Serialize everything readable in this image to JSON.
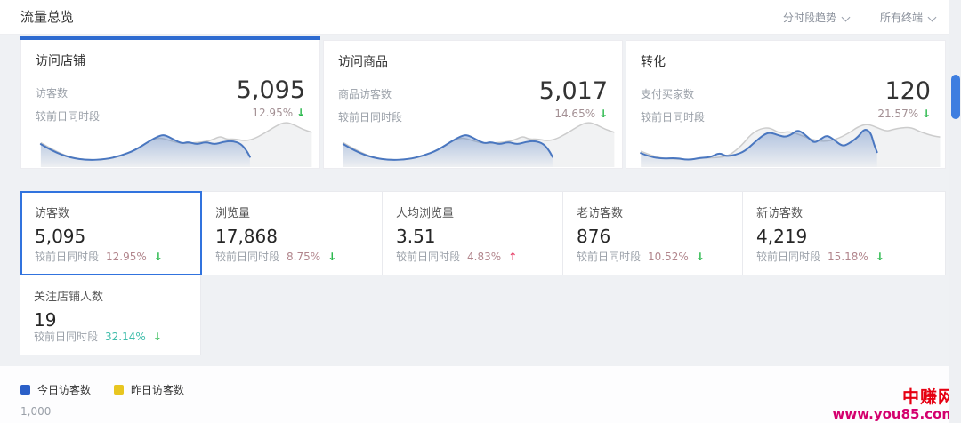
{
  "header": {
    "title": "流量总览",
    "trend_select": "分时段趋势",
    "terminal_select": "所有终端"
  },
  "cards": [
    {
      "title": "访问店铺",
      "metric_label": "访客数",
      "value": "5,095",
      "compare_label": "较前日同时段",
      "change": "12.95%",
      "direction": "down"
    },
    {
      "title": "访问商品",
      "metric_label": "商品访客数",
      "value": "5,017",
      "compare_label": "较前日同时段",
      "change": "14.65%",
      "direction": "down"
    },
    {
      "title": "转化",
      "metric_label": "支付买家数",
      "value": "120",
      "compare_label": "较前日同时段",
      "change": "21.57%",
      "direction": "down"
    }
  ],
  "tiles": [
    {
      "label": "访客数",
      "value": "5,095",
      "compare_label": "较前日同时段",
      "change": "12.95%",
      "direction": "down",
      "selected": true,
      "change_color": "#b2868d"
    },
    {
      "label": "浏览量",
      "value": "17,868",
      "compare_label": "较前日同时段",
      "change": "8.75%",
      "direction": "down",
      "selected": false,
      "change_color": "#b2868d"
    },
    {
      "label": "人均浏览量",
      "value": "3.51",
      "compare_label": "较前日同时段",
      "change": "4.83%",
      "direction": "up",
      "selected": false,
      "change_color": "#b2868d"
    },
    {
      "label": "老访客数",
      "value": "876",
      "compare_label": "较前日同时段",
      "change": "10.52%",
      "direction": "down",
      "selected": false,
      "change_color": "#b2868d"
    },
    {
      "label": "新访客数",
      "value": "4,219",
      "compare_label": "较前日同时段",
      "change": "15.18%",
      "direction": "down",
      "selected": false,
      "change_color": "#b2868d"
    },
    {
      "label": "关注店铺人数",
      "value": "19",
      "compare_label": "较前日同时段",
      "change": "32.14%",
      "direction": "down",
      "selected": false,
      "change_color": "#3fbdaa"
    }
  ],
  "legend": [
    {
      "label": "今日访客数",
      "color": "#2b5fc7"
    },
    {
      "label": "昨日访客数",
      "color": "#e8c620"
    }
  ],
  "axis_tick": "1,000",
  "watermark": {
    "site": "中赚网",
    "url": "www.you85.com"
  },
  "colors": {
    "accent": "#2e6bd0",
    "spark_today": "#4a77c0",
    "spark_yesterday": "#cccccc",
    "arrow_down_green": "#26b749",
    "arrow_up_red": "#e8486f"
  },
  "chart_data": {
    "type": "area",
    "note": "mini trend sparklines, today(blue) vs yesterday(gray), values normalized 0-100",
    "sparklines": [
      {
        "today": [
          [
            6,
            45
          ],
          [
            10,
            30
          ],
          [
            16,
            16
          ],
          [
            22,
            11
          ],
          [
            28,
            13
          ],
          [
            33,
            20
          ],
          [
            38,
            32
          ],
          [
            43,
            52
          ],
          [
            46,
            62
          ],
          [
            48,
            65
          ],
          [
            51,
            55
          ],
          [
            54,
            46
          ],
          [
            56,
            50
          ],
          [
            59,
            44
          ],
          [
            62,
            50
          ],
          [
            65,
            44
          ],
          [
            68,
            50
          ],
          [
            71,
            52
          ],
          [
            74,
            46
          ],
          [
            76,
            30
          ],
          [
            77,
            18
          ]
        ],
        "yesterday": [
          [
            6,
            48
          ],
          [
            12,
            26
          ],
          [
            18,
            14
          ],
          [
            24,
            11
          ],
          [
            30,
            14
          ],
          [
            36,
            26
          ],
          [
            42,
            48
          ],
          [
            46,
            60
          ],
          [
            50,
            52
          ],
          [
            54,
            46
          ],
          [
            58,
            48
          ],
          [
            62,
            50
          ],
          [
            65,
            56
          ],
          [
            67,
            62
          ],
          [
            69,
            55
          ],
          [
            72,
            56
          ],
          [
            75,
            52
          ],
          [
            78,
            55
          ],
          [
            82,
            68
          ],
          [
            86,
            84
          ],
          [
            89,
            92
          ],
          [
            92,
            86
          ],
          [
            95,
            76
          ],
          [
            98,
            70
          ]
        ]
      },
      {
        "today": [
          [
            6,
            45
          ],
          [
            10,
            30
          ],
          [
            16,
            16
          ],
          [
            22,
            11
          ],
          [
            28,
            13
          ],
          [
            33,
            20
          ],
          [
            38,
            32
          ],
          [
            43,
            52
          ],
          [
            46,
            62
          ],
          [
            48,
            65
          ],
          [
            51,
            55
          ],
          [
            54,
            46
          ],
          [
            56,
            50
          ],
          [
            59,
            44
          ],
          [
            62,
            50
          ],
          [
            65,
            44
          ],
          [
            68,
            50
          ],
          [
            71,
            52
          ],
          [
            74,
            46
          ],
          [
            76,
            30
          ],
          [
            77,
            18
          ]
        ],
        "yesterday": [
          [
            6,
            48
          ],
          [
            12,
            26
          ],
          [
            18,
            14
          ],
          [
            24,
            11
          ],
          [
            30,
            14
          ],
          [
            36,
            26
          ],
          [
            42,
            48
          ],
          [
            46,
            60
          ],
          [
            50,
            52
          ],
          [
            54,
            46
          ],
          [
            58,
            48
          ],
          [
            62,
            50
          ],
          [
            65,
            56
          ],
          [
            67,
            62
          ],
          [
            69,
            55
          ],
          [
            72,
            56
          ],
          [
            75,
            52
          ],
          [
            78,
            55
          ],
          [
            82,
            68
          ],
          [
            86,
            84
          ],
          [
            89,
            92
          ],
          [
            92,
            86
          ],
          [
            95,
            76
          ],
          [
            98,
            70
          ]
        ]
      },
      {
        "today": [
          [
            4,
            26
          ],
          [
            7,
            18
          ],
          [
            11,
            14
          ],
          [
            15,
            16
          ],
          [
            19,
            11
          ],
          [
            23,
            16
          ],
          [
            26,
            17
          ],
          [
            29,
            27
          ],
          [
            31,
            19
          ],
          [
            34,
            22
          ],
          [
            37,
            30
          ],
          [
            40,
            48
          ],
          [
            43,
            65
          ],
          [
            45,
            70
          ],
          [
            48,
            63
          ],
          [
            50,
            60
          ],
          [
            52,
            66
          ],
          [
            54,
            76
          ],
          [
            57,
            60
          ],
          [
            59,
            47
          ],
          [
            61,
            55
          ],
          [
            63,
            64
          ],
          [
            65,
            56
          ],
          [
            68,
            40
          ],
          [
            70,
            46
          ],
          [
            73,
            60
          ],
          [
            75,
            78
          ],
          [
            77,
            70
          ],
          [
            78,
            45
          ],
          [
            79,
            28
          ]
        ],
        "yesterday": [
          [
            4,
            30
          ],
          [
            9,
            16
          ],
          [
            14,
            14
          ],
          [
            19,
            12
          ],
          [
            24,
            16
          ],
          [
            28,
            16
          ],
          [
            32,
            20
          ],
          [
            36,
            42
          ],
          [
            39,
            66
          ],
          [
            42,
            78
          ],
          [
            45,
            80
          ],
          [
            48,
            68
          ],
          [
            51,
            72
          ],
          [
            54,
            66
          ],
          [
            58,
            55
          ],
          [
            62,
            50
          ],
          [
            66,
            55
          ],
          [
            70,
            68
          ],
          [
            73,
            82
          ],
          [
            76,
            88
          ],
          [
            79,
            80
          ],
          [
            82,
            72
          ],
          [
            84,
            76
          ],
          [
            87,
            80
          ],
          [
            90,
            80
          ],
          [
            93,
            70
          ],
          [
            97,
            62
          ],
          [
            99,
            60
          ]
        ]
      }
    ]
  }
}
